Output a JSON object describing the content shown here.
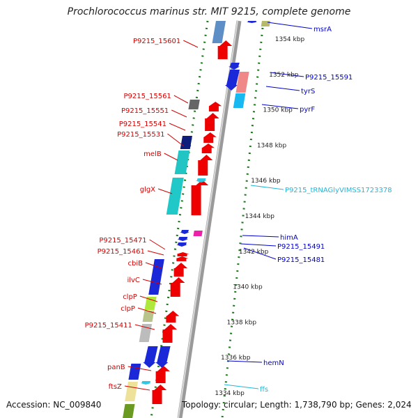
{
  "title": "Prochlorococcus marinus str. MIT 9215, complete genome",
  "footer": {
    "accession": "Accession: NC_009840",
    "summary": "Topology: circular; Length: 1,738,790 bp; Genes: 2,024"
  },
  "colors": {
    "left_label": "#d40000",
    "right_label": "#0000cc",
    "rna_label": "#1fb8d8",
    "backbone": "#9a9a9a",
    "tick_dots": "#1a7a1a"
  },
  "scale_ticks": [
    {
      "kbp": 1354,
      "label": "1354 kbp"
    },
    {
      "kbp": 1352,
      "label": "1352 kbp"
    },
    {
      "kbp": 1350,
      "label": "1350 kbp"
    },
    {
      "kbp": 1348,
      "label": "1348 kbp"
    },
    {
      "kbp": 1346,
      "label": "1346 kbp"
    },
    {
      "kbp": 1344,
      "label": "1344 kbp"
    },
    {
      "kbp": 1342,
      "label": "1342 kbp"
    },
    {
      "kbp": 1340,
      "label": "1340 kbp"
    },
    {
      "kbp": 1338,
      "label": "1338 kbp"
    },
    {
      "kbp": 1336,
      "label": "1336 kbp"
    },
    {
      "kbp": 1334,
      "label": "1334 kbp"
    }
  ],
  "left_labels": [
    "P9215_15601",
    "P9215_15561",
    "P9215_15551",
    "P9215_15541",
    "P9215_15531",
    "melB",
    "glgX",
    "P9215_15471",
    "P9215_15461",
    "cbiB",
    "ilvC",
    "clpP",
    "clpP",
    "P9215_15411",
    "panB",
    "ftsZ"
  ],
  "right_labels": [
    "msrA",
    "P9215_15591",
    "tyrS",
    "pyrF",
    "P9215_tRNAGlyVIMSS1723378",
    "himA",
    "P9215_15491",
    "P9215_15481",
    "hemN",
    "ffs"
  ]
}
